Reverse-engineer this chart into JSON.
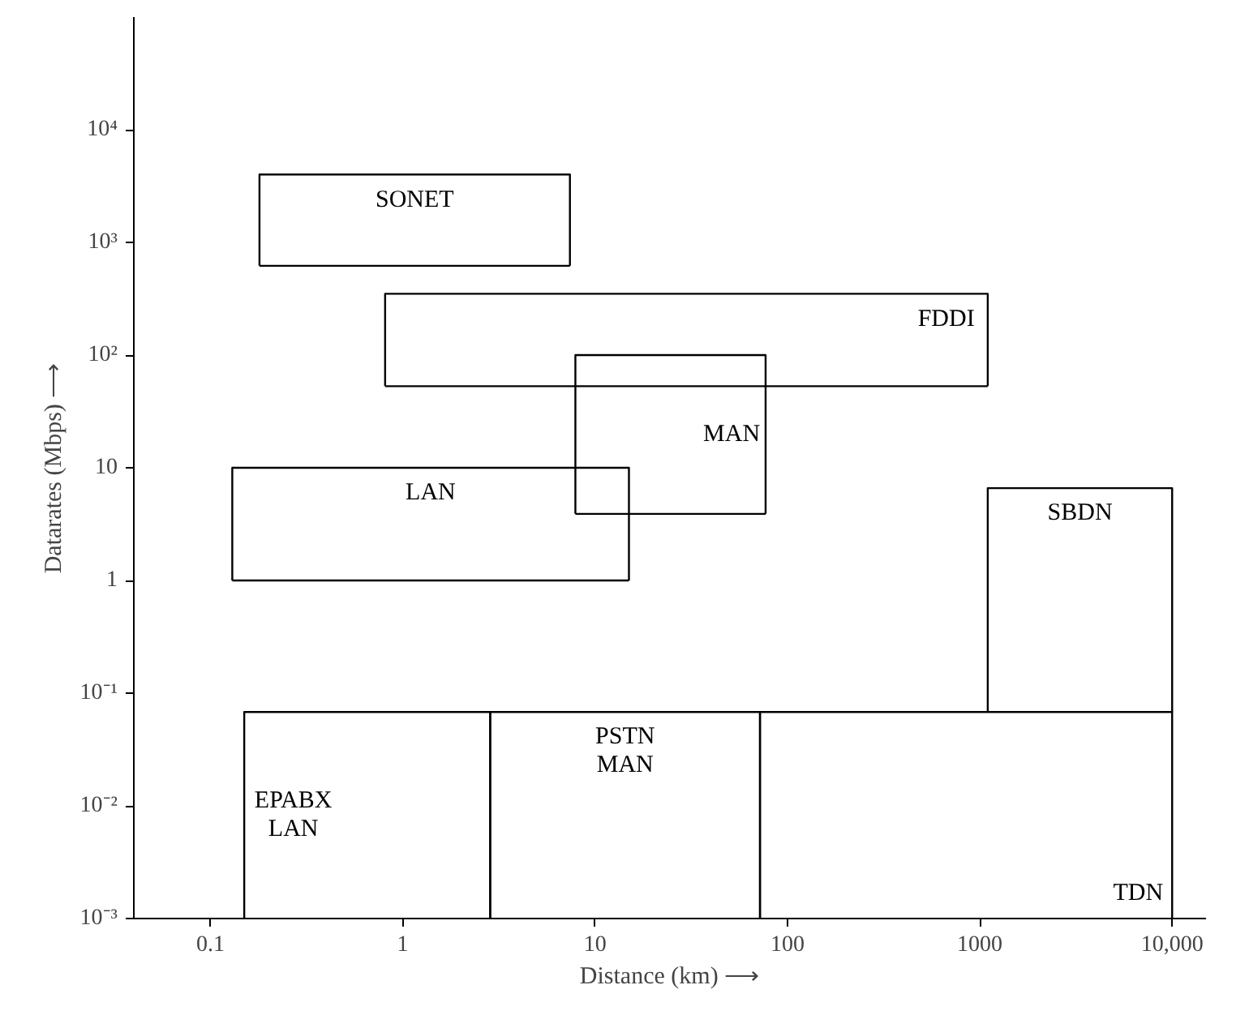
{
  "chart_data": {
    "type": "line",
    "xlabel": "Distance (km) ⟶",
    "ylabel": "Datarates (Mbps) ⟶",
    "log": "xy",
    "xlim": [
      0.04,
      15000
    ],
    "ylim": [
      0.001,
      100000
    ],
    "xticks": [
      0.1,
      1,
      10,
      100,
      1000,
      {
        "value": 10000,
        "label": "10,000"
      }
    ],
    "yticks": [
      {
        "value": 0.001,
        "label": "10⁻³"
      },
      {
        "value": 0.01,
        "label": "10⁻²"
      },
      {
        "value": 0.1,
        "label": "10⁻¹"
      },
      1,
      10,
      {
        "value": 100,
        "label": "10²"
      },
      {
        "value": 1000,
        "label": "10³"
      },
      {
        "value": 10000,
        "label": "10⁴"
      }
    ],
    "grid": false,
    "legend": false,
    "marker": "none",
    "line_style": "solid",
    "series": [
      {
        "name": "SONET",
        "color": "#000000",
        "x": [
          0.18,
          0.18,
          7.4,
          7.4
        ],
        "values": [
          620,
          4000,
          4000,
          620
        ]
      },
      {
        "color": "#000000",
        "x": [
          0.18,
          7.4
        ],
        "values": [
          620,
          620
        ]
      },
      {
        "name": "FDDI",
        "color": "#000000",
        "x": [
          0.81,
          0.81,
          1100,
          1100
        ],
        "values": [
          53,
          350,
          350,
          53
        ]
      },
      {
        "color": "#000000",
        "x": [
          0.81,
          1100
        ],
        "values": [
          53,
          53
        ]
      },
      {
        "name": "MAN",
        "color": "#000000",
        "x": [
          7.9,
          7.9,
          77,
          77
        ],
        "values": [
          3.9,
          100,
          100,
          3.9
        ]
      },
      {
        "color": "#000000",
        "x": [
          7.9,
          77
        ],
        "values": [
          3.9,
          3.9
        ]
      },
      {
        "name": "LAN",
        "color": "#000000",
        "x": [
          0.13,
          0.13,
          15,
          15
        ],
        "values": [
          1,
          10,
          10,
          1
        ]
      },
      {
        "color": "#000000",
        "x": [
          0.13,
          15
        ],
        "values": [
          1,
          1
        ]
      },
      {
        "name": "SBDN",
        "color": "#000000",
        "x": [
          1100,
          1100,
          10000,
          10000
        ],
        "values": [
          0.068,
          6.6,
          6.6,
          0.068
        ]
      },
      {
        "name": "EPABX\nLAN",
        "color": "#000000",
        "x": [
          0.15,
          0.15,
          2.85,
          2.85
        ],
        "values": [
          0.001,
          0.068,
          0.068,
          0.001
        ]
      },
      {
        "name": "PSTN\nMAN",
        "color": "#000000",
        "x": [
          2.85,
          2.85,
          72,
          72
        ],
        "values": [
          0.001,
          0.068,
          0.068,
          0.001
        ]
      },
      {
        "name": "TDN",
        "color": "#000000",
        "x": [
          72,
          72,
          10000,
          10000
        ],
        "values": [
          0.001,
          0.068,
          0.068,
          0.001
        ]
      }
    ]
  }
}
